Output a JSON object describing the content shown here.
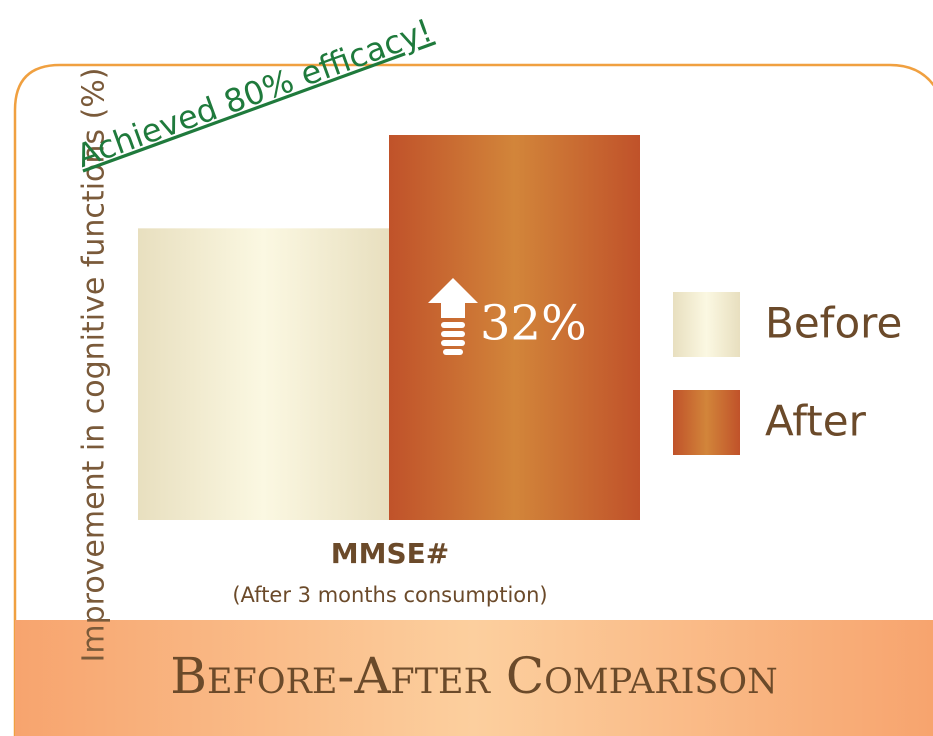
{
  "chart_data": {
    "type": "bar",
    "title": "Before-After Comparison",
    "y_label": "Improvement in cognitive functions (%)",
    "categories": [
      "MMSE#"
    ],
    "x_sublabel": "(After 3 months consumption)",
    "series": [
      {
        "name": "Before",
        "color": "#f4eed2",
        "values": [
          100
        ]
      },
      {
        "name": "After",
        "color": "#c9662e",
        "values": [
          132
        ]
      }
    ],
    "ylim": [
      0,
      132
    ],
    "annotations": [
      "32%",
      "Achieved 80% efficacy!"
    ]
  }
}
